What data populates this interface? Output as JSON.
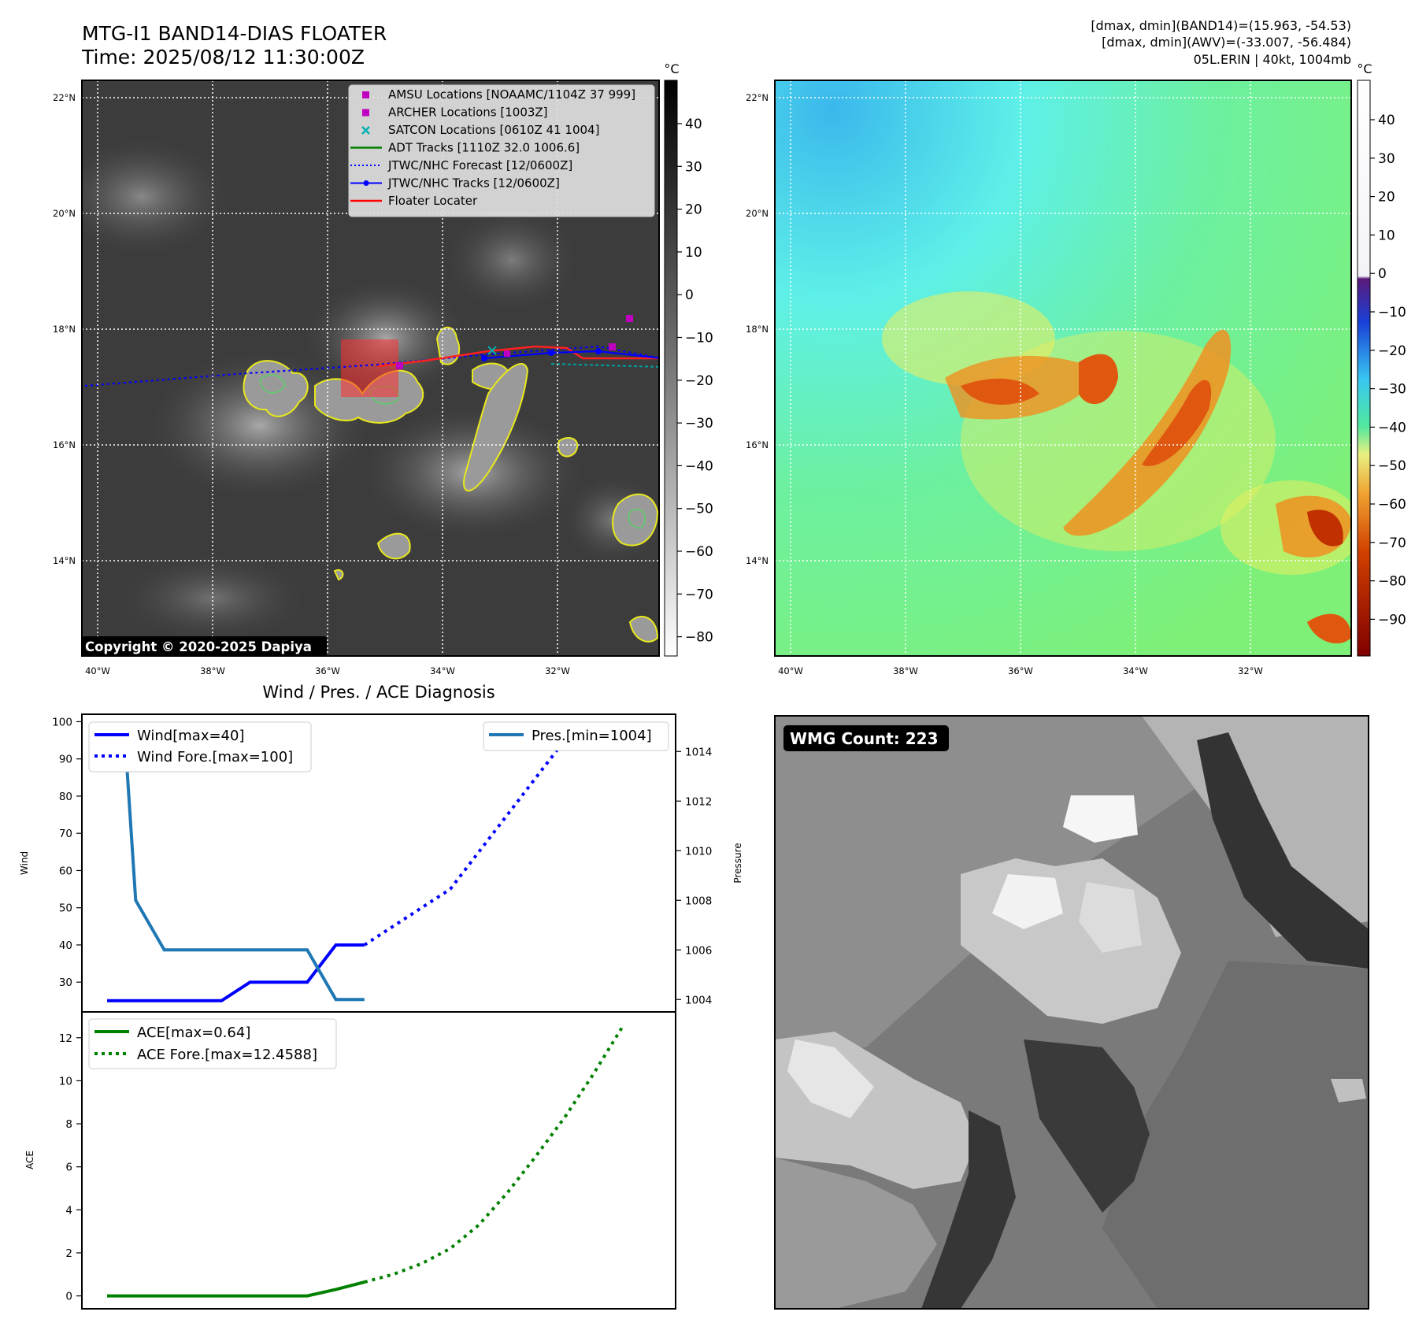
{
  "header": {
    "title": "MTG-I1 BAND14-DIAS FLOATER",
    "time": "Time: 2025/08/12 11:30:00Z",
    "info_line1": "[dmax, dmin](BAND14)=(15.963, -54.53)",
    "info_line2": "[dmax, dmin](AWV)=(-33.007, -56.484)",
    "info_line3": "05L.ERIN | 40kt, 1004mb"
  },
  "map_ir": {
    "lat_labels": [
      "22°N",
      "20°N",
      "18°N",
      "16°N",
      "14°N"
    ],
    "lon_labels": [
      "40°W",
      "38°W",
      "36°W",
      "34°W",
      "32°W"
    ],
    "legend": [
      {
        "label": "AMSU Locations [NOAAMC/1104Z 37 999]",
        "symbol": "square",
        "color": "#c000c0"
      },
      {
        "label": "ARCHER Locations [1003Z]",
        "symbol": "square",
        "color": "#c000c0"
      },
      {
        "label": "SATCON Locations [0610Z 41 1004]",
        "symbol": "x",
        "color": "#00b0b0"
      },
      {
        "label": "ADT Tracks [1110Z 32.0 1006.6]",
        "symbol": "line",
        "color": "#008000"
      },
      {
        "label": "JTWC/NHC Forecast [12/0600Z]",
        "symbol": "dotted",
        "color": "#0000ff"
      },
      {
        "label": "JTWC/NHC Tracks [12/0600Z]",
        "symbol": "line-dot",
        "color": "#0000ff"
      },
      {
        "label": "Floater Locater",
        "symbol": "line",
        "color": "#ff0000"
      }
    ],
    "copyright": "Copyright © 2020-2025 Dapiya",
    "colorbar_unit": "°C",
    "colorbar_ticks": [
      "40",
      "30",
      "20",
      "10",
      "0",
      "−10",
      "−20",
      "−30",
      "−40",
      "−50",
      "−60",
      "−70",
      "−80"
    ]
  },
  "map_awv": {
    "lat_labels": [
      "22°N",
      "20°N",
      "18°N",
      "16°N",
      "14°N"
    ],
    "lon_labels": [
      "40°W",
      "38°W",
      "36°W",
      "34°W",
      "32°W"
    ],
    "colorbar_unit": "°C",
    "colorbar_ticks": [
      "40",
      "30",
      "20",
      "10",
      "0",
      "−10",
      "−20",
      "−30",
      "−40",
      "−50",
      "−60",
      "−70",
      "−80",
      "−90"
    ]
  },
  "wmg": {
    "label": "WMG Count: 223"
  },
  "chart_data": [
    {
      "type": "line",
      "title": "Wind / Pres. / ACE Diagnosis",
      "ylabel": "Wind",
      "ylabel_right": "Pressure",
      "ylim": [
        22,
        102
      ],
      "ylim_right": [
        1003.5,
        1015.5
      ],
      "x": [
        0,
        1,
        2,
        3,
        4,
        5,
        6,
        7,
        8,
        9,
        10,
        11,
        12,
        13,
        14,
        15,
        16,
        17,
        18,
        19
      ],
      "y_ticks": [
        "100",
        "90",
        "80",
        "70",
        "60",
        "50",
        "40",
        "30"
      ],
      "y_right_ticks": [
        "1014",
        "1012",
        "1010",
        "1008",
        "1006",
        "1004"
      ],
      "series": [
        {
          "name": "Wind[max=40]",
          "style": "solid",
          "color": "#0000ff",
          "x": [
            0,
            1,
            2,
            3,
            4,
            5,
            6,
            7,
            8,
            9
          ],
          "values": [
            25,
            25,
            25,
            25,
            25,
            30,
            30,
            30,
            40,
            40
          ]
        },
        {
          "name": "Wind Fore.[max=100]",
          "style": "dotted",
          "color": "#0000ff",
          "x": [
            9,
            10,
            11,
            12,
            13,
            14,
            15,
            16,
            17,
            18
          ],
          "values": [
            40,
            45,
            50,
            55,
            65,
            75,
            85,
            95,
            95,
            100
          ]
        },
        {
          "name": "Pres.[min=1004]",
          "style": "solid",
          "color": "#1f77b4",
          "axis": "right",
          "x": [
            0,
            0.6,
            1,
            2,
            3,
            4,
            5,
            6,
            7,
            8,
            9
          ],
          "values": [
            1015,
            1015,
            1008,
            1006,
            1006,
            1006,
            1006,
            1006,
            1006,
            1004,
            1004
          ]
        }
      ]
    },
    {
      "type": "line",
      "ylabel": "ACE",
      "ylim": [
        -0.6,
        13.2
      ],
      "x": [
        0,
        1,
        2,
        3,
        4,
        5,
        6,
        7,
        8,
        9,
        10,
        11,
        12,
        13,
        14,
        15,
        16,
        17,
        18,
        19
      ],
      "y_ticks": [
        "12",
        "10",
        "8",
        "6",
        "4",
        "2",
        "0"
      ],
      "series": [
        {
          "name": "ACE[max=0.64]",
          "style": "solid",
          "color": "#008000",
          "x": [
            0,
            1,
            2,
            3,
            4,
            5,
            6,
            7,
            8,
            9
          ],
          "values": [
            0,
            0,
            0,
            0,
            0,
            0,
            0,
            0,
            0.3,
            0.64
          ]
        },
        {
          "name": "ACE Fore.[max=12.4588]",
          "style": "dotted",
          "color": "#008000",
          "x": [
            9,
            10,
            11,
            12,
            13,
            14,
            15,
            16,
            17,
            18
          ],
          "values": [
            0.64,
            1.0,
            1.5,
            2.2,
            3.3,
            4.8,
            6.5,
            8.3,
            10.3,
            12.4588
          ]
        }
      ]
    }
  ]
}
